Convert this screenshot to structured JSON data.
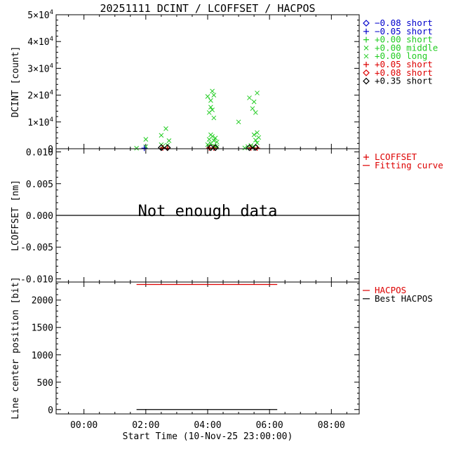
{
  "title": "20251111 DCINT / LCOFFSET / HACPOS",
  "x_axis": {
    "label": "Start Time (10-Nov-25 23:00:00)",
    "ticks": [
      "00:00",
      "02:00",
      "04:00",
      "06:00",
      "08:00"
    ]
  },
  "chart_data": [
    {
      "type": "scatter",
      "ylabel": "DCINT [count]",
      "xlim": [
        -0.9,
        8.9
      ],
      "ylim": [
        0,
        50000
      ],
      "y_ticks": [
        {
          "value": 0,
          "mantissa": "0",
          "exp": ""
        },
        {
          "value": 10000,
          "mantissa": "1×10",
          "exp": "4"
        },
        {
          "value": 20000,
          "mantissa": "2×10",
          "exp": "4"
        },
        {
          "value": 30000,
          "mantissa": "3×10",
          "exp": "4"
        },
        {
          "value": 40000,
          "mantissa": "4×10",
          "exp": "4"
        },
        {
          "value": 50000,
          "mantissa": "5×10",
          "exp": "4"
        }
      ],
      "legend": [
        {
          "symbol": "diamond",
          "label": "−0.08 short",
          "color": "#0000cc"
        },
        {
          "symbol": "plus",
          "label": "−0.05 short",
          "color": "#0000cc"
        },
        {
          "symbol": "plus",
          "label": "+0.00 short",
          "color": "#22cc22"
        },
        {
          "symbol": "cross",
          "label": "+0.00 middle",
          "color": "#22cc22"
        },
        {
          "symbol": "cross",
          "label": "+0.00 long",
          "color": "#22cc22"
        },
        {
          "symbol": "plus",
          "label": "+0.05 short",
          "color": "#dd0000"
        },
        {
          "symbol": "diamond",
          "label": "+0.08 short",
          "color": "#dd0000"
        },
        {
          "symbol": "diamond",
          "label": "+0.35 short",
          "color": "#000000"
        }
      ],
      "series": [
        {
          "name": "+0.00 middle",
          "marker": "cross",
          "color": "#22cc22",
          "points": [
            [
              1.7,
              200
            ],
            [
              2.0,
              3500
            ],
            [
              2.0,
              800
            ],
            [
              2.5,
              5000
            ],
            [
              2.65,
              7500
            ],
            [
              2.75,
              3000
            ],
            [
              2.5,
              1500
            ],
            [
              4.0,
              19500
            ],
            [
              4.1,
              18000
            ],
            [
              4.15,
              21500
            ],
            [
              4.2,
              20000
            ],
            [
              4.1,
              15500
            ],
            [
              4.05,
              13500
            ],
            [
              4.15,
              14500
            ],
            [
              4.2,
              11500
            ],
            [
              4.1,
              5200
            ],
            [
              4.15,
              4600
            ],
            [
              4.25,
              4000
            ],
            [
              4.05,
              3500
            ],
            [
              4.2,
              3000
            ],
            [
              4.3,
              2500
            ],
            [
              4.1,
              2000
            ],
            [
              4.0,
              1500
            ],
            [
              4.2,
              1000
            ],
            [
              4.3,
              600
            ],
            [
              5.0,
              10000
            ],
            [
              5.2,
              300
            ],
            [
              5.35,
              19000
            ],
            [
              5.5,
              17500
            ],
            [
              5.6,
              20800
            ],
            [
              5.45,
              15000
            ],
            [
              5.55,
              13500
            ],
            [
              5.6,
              6000
            ],
            [
              5.5,
              5200
            ],
            [
              5.65,
              4200
            ],
            [
              5.55,
              3200
            ],
            [
              5.6,
              2200
            ],
            [
              5.4,
              1200
            ]
          ]
        },
        {
          "name": "+0.00 long",
          "marker": "cross",
          "color": "#22cc22",
          "points": [
            [
              2.55,
              1000
            ],
            [
              2.7,
              1300
            ],
            [
              4.05,
              800
            ],
            [
              4.25,
              900
            ],
            [
              5.3,
              800
            ],
            [
              5.5,
              700
            ]
          ]
        },
        {
          "name": "−0.05 short",
          "marker": "plus",
          "color": "#0000cc",
          "points": [
            [
              1.95,
              200
            ]
          ]
        },
        {
          "name": "+0.05 short",
          "marker": "plus",
          "color": "#dd0000",
          "points": [
            [
              2.55,
              300
            ],
            [
              2.7,
              250
            ],
            [
              4.05,
              300
            ],
            [
              4.2,
              250
            ],
            [
              5.4,
              300
            ],
            [
              5.6,
              250
            ]
          ]
        },
        {
          "name": "+0.35 short",
          "marker": "diamond",
          "color": "#000000",
          "points": [
            [
              2.5,
              400
            ],
            [
              2.7,
              400
            ],
            [
              4.1,
              400
            ],
            [
              4.25,
              400
            ],
            [
              5.35,
              400
            ],
            [
              5.55,
              500
            ]
          ]
        }
      ]
    },
    {
      "type": "scatter",
      "ylabel": "LCOFFSET [nm]",
      "xlim": [
        -0.9,
        8.9
      ],
      "ylim": [
        -0.0105,
        0.0105
      ],
      "y_ticks": [
        {
          "value": -0.01,
          "label": "-0.010"
        },
        {
          "value": -0.005,
          "label": "-0.005"
        },
        {
          "value": 0,
          "label": "0.000"
        },
        {
          "value": 0.005,
          "label": "0.005"
        },
        {
          "value": 0.01,
          "label": "0.010"
        }
      ],
      "legend": [
        {
          "symbol": "plus",
          "label": "LCOFFSET",
          "color": "#dd0000"
        },
        {
          "symbol": "line",
          "label": "Fitting curve",
          "color": "#dd0000"
        }
      ],
      "zero_line": 0,
      "annotation": "Not enough data",
      "series": []
    },
    {
      "type": "line",
      "ylabel": "Line center position [bit]",
      "xlim": [
        -0.9,
        8.9
      ],
      "ylim": [
        -80,
        2330
      ],
      "y_ticks": [
        {
          "value": 0,
          "label": "0"
        },
        {
          "value": 500,
          "label": "500"
        },
        {
          "value": 1000,
          "label": "1000"
        },
        {
          "value": 1500,
          "label": "1500"
        },
        {
          "value": 2000,
          "label": "2000"
        }
      ],
      "legend": [
        {
          "symbol": "line",
          "label": "HACPOS",
          "color": "#dd0000"
        },
        {
          "symbol": "line",
          "label": "Best HACPOS",
          "color": "#000000"
        }
      ],
      "series": [
        {
          "name": "HACPOS",
          "color": "#dd0000",
          "x": [
            1.7,
            6.25
          ],
          "y": [
            2285,
            2285
          ]
        },
        {
          "name": "Best HACPOS",
          "color": "#000000",
          "x": [
            1.7,
            6.25
          ],
          "y": [
            0,
            0
          ]
        }
      ]
    }
  ]
}
